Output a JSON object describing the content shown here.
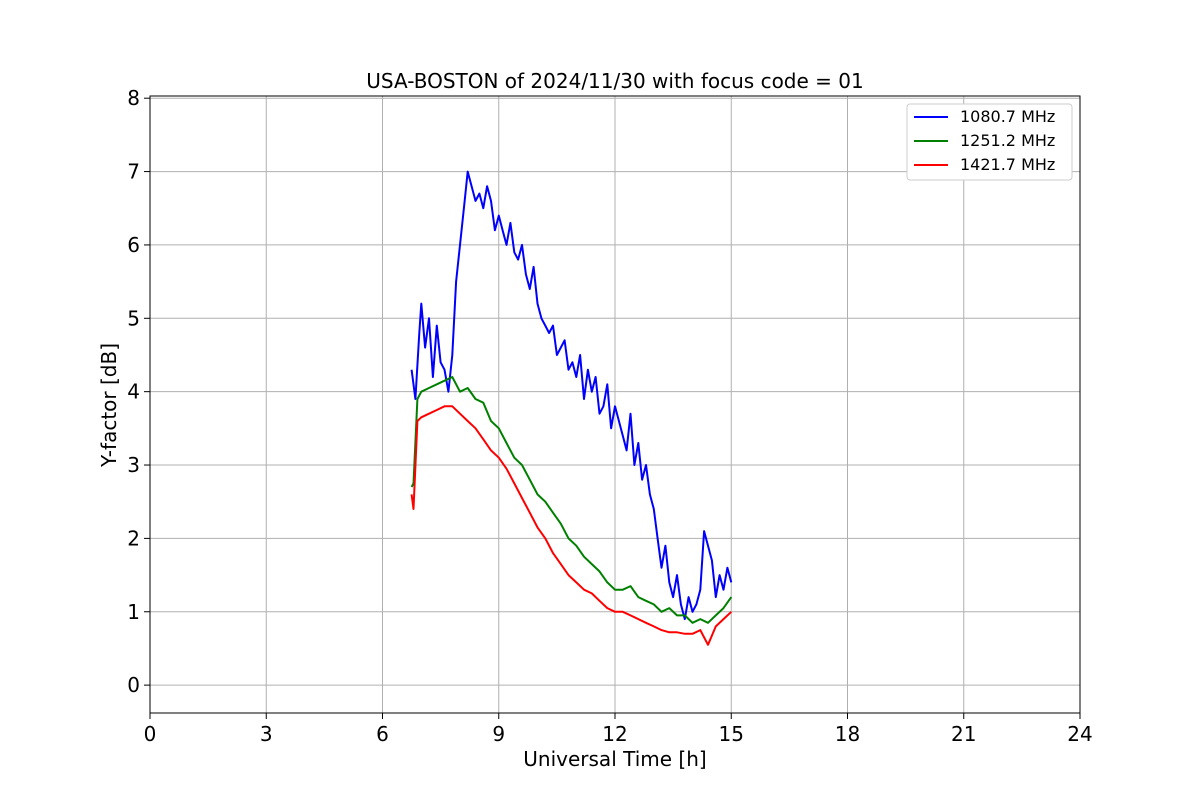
{
  "chart_data": {
    "type": "line",
    "title": "USA-BOSTON of 2024/11/30 with focus code = 01",
    "xlabel": "Universal Time [h]",
    "ylabel": "Y-factor [dB]",
    "xlim": [
      0,
      24
    ],
    "ylim": [
      -0.38,
      8.03
    ],
    "xticks": [
      0,
      3,
      6,
      9,
      12,
      15,
      18,
      21,
      24
    ],
    "yticks": [
      0,
      1,
      2,
      3,
      4,
      5,
      6,
      7,
      8
    ],
    "grid": true,
    "legend_position": "top-right",
    "series": [
      {
        "name": "1080.7 MHz",
        "color": "#0000ff",
        "x": [
          6.75,
          6.85,
          6.95,
          7.0,
          7.1,
          7.2,
          7.3,
          7.4,
          7.5,
          7.6,
          7.7,
          7.8,
          7.9,
          8.0,
          8.1,
          8.2,
          8.3,
          8.4,
          8.5,
          8.6,
          8.7,
          8.8,
          8.9,
          9.0,
          9.1,
          9.2,
          9.3,
          9.4,
          9.5,
          9.6,
          9.7,
          9.8,
          9.9,
          10.0,
          10.1,
          10.2,
          10.3,
          10.4,
          10.5,
          10.6,
          10.7,
          10.8,
          10.9,
          11.0,
          11.1,
          11.2,
          11.3,
          11.4,
          11.5,
          11.6,
          11.7,
          11.8,
          11.9,
          12.0,
          12.1,
          12.2,
          12.3,
          12.4,
          12.5,
          12.6,
          12.7,
          12.8,
          12.9,
          13.0,
          13.1,
          13.2,
          13.3,
          13.4,
          13.5,
          13.6,
          13.7,
          13.8,
          13.9,
          14.0,
          14.1,
          14.2,
          14.3,
          14.4,
          14.5,
          14.6,
          14.7,
          14.8,
          14.9,
          15.0
        ],
        "y": [
          4.3,
          3.9,
          4.8,
          5.2,
          4.6,
          5.0,
          4.2,
          4.9,
          4.4,
          4.3,
          4.0,
          4.5,
          5.5,
          6.0,
          6.5,
          7.0,
          6.8,
          6.6,
          6.7,
          6.5,
          6.8,
          6.6,
          6.2,
          6.4,
          6.2,
          6.0,
          6.3,
          5.9,
          5.8,
          6.0,
          5.6,
          5.4,
          5.7,
          5.2,
          5.0,
          4.9,
          4.8,
          4.9,
          4.5,
          4.6,
          4.7,
          4.3,
          4.4,
          4.2,
          4.5,
          3.9,
          4.3,
          4.0,
          4.2,
          3.7,
          3.8,
          4.1,
          3.5,
          3.8,
          3.6,
          3.4,
          3.2,
          3.7,
          3.0,
          3.3,
          2.8,
          3.0,
          2.6,
          2.4,
          2.0,
          1.6,
          1.9,
          1.4,
          1.2,
          1.5,
          1.1,
          0.9,
          1.2,
          1.0,
          1.1,
          1.3,
          2.1,
          1.9,
          1.7,
          1.2,
          1.5,
          1.3,
          1.6,
          1.4
        ]
      },
      {
        "name": "1251.2 MHz",
        "color": "#008000",
        "x": [
          6.75,
          6.8,
          6.9,
          7.0,
          7.2,
          7.4,
          7.6,
          7.8,
          8.0,
          8.2,
          8.4,
          8.6,
          8.8,
          9.0,
          9.2,
          9.4,
          9.6,
          9.8,
          10.0,
          10.2,
          10.4,
          10.6,
          10.8,
          11.0,
          11.2,
          11.4,
          11.6,
          11.8,
          12.0,
          12.2,
          12.4,
          12.6,
          12.8,
          13.0,
          13.2,
          13.4,
          13.6,
          13.8,
          14.0,
          14.2,
          14.4,
          14.6,
          14.8,
          15.0
        ],
        "y": [
          2.7,
          2.75,
          3.9,
          4.0,
          4.05,
          4.1,
          4.15,
          4.2,
          4.0,
          4.05,
          3.9,
          3.85,
          3.6,
          3.5,
          3.3,
          3.1,
          3.0,
          2.8,
          2.6,
          2.5,
          2.35,
          2.2,
          2.0,
          1.9,
          1.75,
          1.65,
          1.55,
          1.4,
          1.3,
          1.3,
          1.35,
          1.2,
          1.15,
          1.1,
          1.0,
          1.05,
          0.95,
          0.95,
          0.85,
          0.9,
          0.85,
          0.95,
          1.05,
          1.2
        ]
      },
      {
        "name": "1421.7 MHz",
        "color": "#ff0000",
        "x": [
          6.75,
          6.8,
          6.9,
          7.0,
          7.2,
          7.4,
          7.6,
          7.8,
          8.0,
          8.2,
          8.4,
          8.6,
          8.8,
          9.0,
          9.2,
          9.4,
          9.6,
          9.8,
          10.0,
          10.2,
          10.4,
          10.6,
          10.8,
          11.0,
          11.2,
          11.4,
          11.6,
          11.8,
          12.0,
          12.2,
          12.4,
          12.6,
          12.8,
          13.0,
          13.2,
          13.4,
          13.6,
          13.8,
          14.0,
          14.2,
          14.4,
          14.6,
          14.8,
          15.0
        ],
        "y": [
          2.6,
          2.4,
          3.6,
          3.65,
          3.7,
          3.75,
          3.8,
          3.8,
          3.7,
          3.6,
          3.5,
          3.35,
          3.2,
          3.1,
          2.95,
          2.75,
          2.55,
          2.35,
          2.15,
          2.0,
          1.8,
          1.65,
          1.5,
          1.4,
          1.3,
          1.25,
          1.15,
          1.05,
          1.0,
          1.0,
          0.95,
          0.9,
          0.85,
          0.8,
          0.75,
          0.72,
          0.72,
          0.7,
          0.7,
          0.75,
          0.55,
          0.8,
          0.9,
          1.0
        ]
      }
    ]
  }
}
